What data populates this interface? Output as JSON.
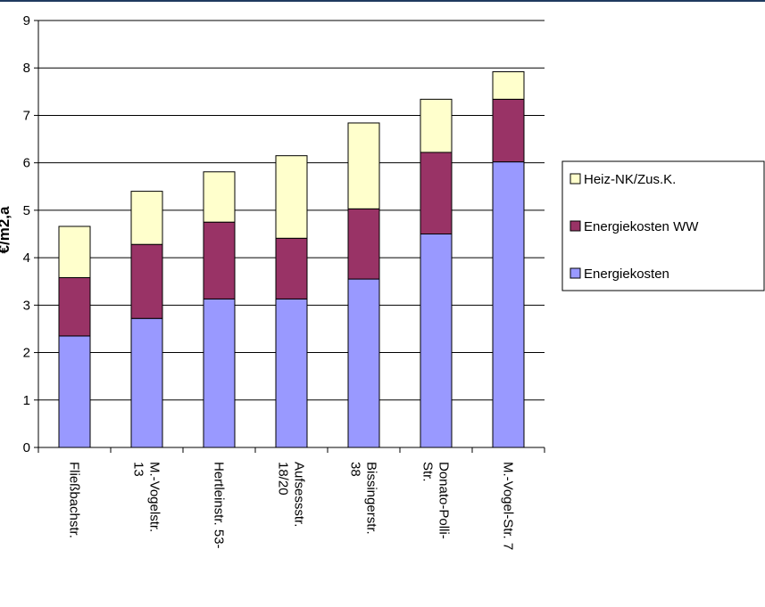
{
  "chart_data": {
    "type": "bar",
    "stacked": true,
    "title": "",
    "xlabel": "",
    "ylabel": "€/m2,a",
    "ylim": [
      0,
      9
    ],
    "yticks": [
      0,
      1,
      2,
      3,
      4,
      5,
      6,
      7,
      8,
      9
    ],
    "grid": true,
    "legend_position": "right",
    "categories": [
      [
        "Fließbachstr."
      ],
      [
        "M.-Vogelstr.",
        "13"
      ],
      [
        "Hertleinstr. 53-"
      ],
      [
        "Aufsessstr.",
        "18/20"
      ],
      [
        "Bissingerstr.",
        "38"
      ],
      [
        "Donato-Polli-",
        "Str."
      ],
      [
        "M.-Vogel-Str. 7"
      ]
    ],
    "series": [
      {
        "name": "Energiekosten",
        "color": "#9999ff",
        "values": [
          2.35,
          2.72,
          3.13,
          3.13,
          3.55,
          4.5,
          6.02
        ]
      },
      {
        "name": "Energiekosten WW",
        "color": "#993366",
        "values": [
          1.23,
          1.56,
          1.62,
          1.28,
          1.48,
          1.72,
          1.32
        ]
      },
      {
        "name": "Heiz-NK/Zus.K.",
        "color": "#ffffcc",
        "values": [
          1.08,
          1.12,
          1.06,
          1.74,
          1.81,
          1.12,
          0.58
        ]
      }
    ],
    "legend_order": [
      2,
      1,
      0
    ]
  }
}
